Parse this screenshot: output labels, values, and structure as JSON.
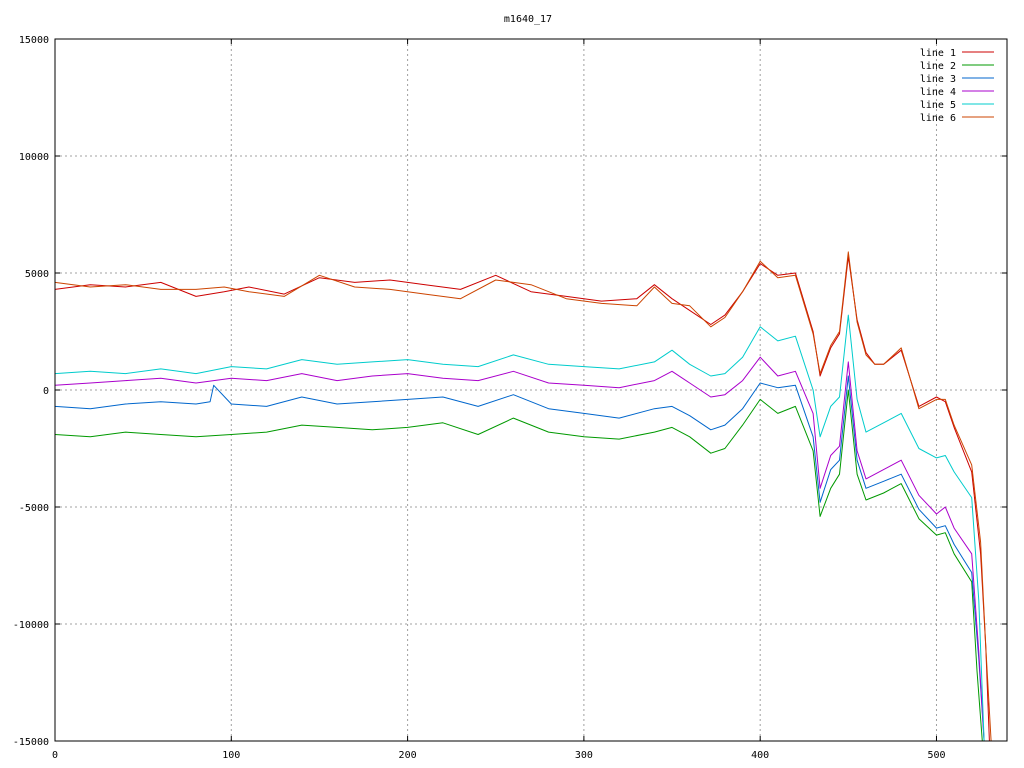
{
  "chart_data": {
    "type": "line",
    "title": "m1640_17",
    "xlabel": "",
    "ylabel": "",
    "xlim": [
      0,
      540
    ],
    "ylim": [
      -15000,
      15000
    ],
    "xticks": [
      0,
      100,
      200,
      300,
      400,
      500
    ],
    "yticks": [
      -15000,
      -10000,
      -5000,
      0,
      5000,
      10000,
      15000
    ],
    "grid": true,
    "legend_position": "top-right",
    "series": [
      {
        "name": "line 1",
        "color": "#cc0000",
        "x": [
          0,
          20,
          40,
          60,
          80,
          96,
          110,
          130,
          150,
          170,
          190,
          210,
          230,
          250,
          270,
          290,
          310,
          330,
          340,
          350,
          360,
          372,
          380,
          390,
          400,
          410,
          420,
          430,
          434,
          440,
          445,
          450,
          455,
          460,
          465,
          470,
          480,
          490,
          500,
          505,
          510,
          520,
          525,
          528,
          530
        ],
        "y": [
          4300,
          4500,
          4400,
          4600,
          4000,
          4200,
          4400,
          4100,
          4800,
          4600,
          4700,
          4500,
          4300,
          4900,
          4200,
          4000,
          3800,
          3900,
          4500,
          3900,
          3400,
          2800,
          3200,
          4200,
          5400,
          4900,
          5000,
          2500,
          600,
          1800,
          2400,
          5700,
          3000,
          1600,
          1100,
          1100,
          1700,
          -700,
          -300,
          -500,
          -1600,
          -3500,
          -7000,
          -11000,
          -15000
        ]
      },
      {
        "name": "line 2",
        "color": "#009900",
        "x": [
          0,
          20,
          40,
          60,
          80,
          100,
          120,
          140,
          160,
          180,
          200,
          220,
          240,
          260,
          280,
          300,
          320,
          340,
          350,
          360,
          372,
          380,
          390,
          400,
          410,
          420,
          430,
          434,
          440,
          445,
          450,
          455,
          460,
          470,
          480,
          490,
          500,
          505,
          510,
          520,
          523,
          526
        ],
        "y": [
          -1900,
          -2000,
          -1800,
          -1900,
          -2000,
          -1900,
          -1800,
          -1500,
          -1600,
          -1700,
          -1600,
          -1400,
          -1900,
          -1200,
          -1800,
          -2000,
          -2100,
          -1800,
          -1600,
          -2000,
          -2700,
          -2500,
          -1500,
          -400,
          -1000,
          -700,
          -2600,
          -5400,
          -4200,
          -3600,
          0,
          -3600,
          -4700,
          -4400,
          -4000,
          -5500,
          -6200,
          -6100,
          -7000,
          -8200,
          -12000,
          -15000
        ]
      },
      {
        "name": "line 3",
        "color": "#0066cc",
        "x": [
          0,
          20,
          40,
          60,
          80,
          88,
          90,
          100,
          120,
          140,
          160,
          180,
          200,
          220,
          240,
          260,
          280,
          300,
          320,
          340,
          350,
          360,
          372,
          380,
          390,
          400,
          410,
          420,
          430,
          434,
          440,
          445,
          450,
          455,
          460,
          470,
          480,
          490,
          500,
          505,
          510,
          520,
          524,
          527
        ],
        "y": [
          -700,
          -800,
          -600,
          -500,
          -600,
          -500,
          200,
          -600,
          -700,
          -300,
          -600,
          -500,
          -400,
          -300,
          -700,
          -200,
          -800,
          -1000,
          -1200,
          -800,
          -700,
          -1100,
          -1700,
          -1500,
          -800,
          300,
          100,
          200,
          -2000,
          -4800,
          -3400,
          -3000,
          600,
          -3000,
          -4200,
          -3900,
          -3600,
          -5100,
          -5900,
          -5800,
          -6600,
          -7800,
          -11500,
          -15000
        ]
      },
      {
        "name": "line 4",
        "color": "#aa00cc",
        "x": [
          0,
          20,
          40,
          60,
          80,
          100,
          120,
          140,
          160,
          180,
          200,
          220,
          240,
          260,
          280,
          300,
          320,
          340,
          350,
          360,
          372,
          380,
          390,
          400,
          410,
          420,
          430,
          434,
          440,
          445,
          450,
          455,
          460,
          470,
          480,
          490,
          500,
          505,
          510,
          520,
          524,
          527
        ],
        "y": [
          200,
          300,
          400,
          500,
          300,
          500,
          400,
          700,
          400,
          600,
          700,
          500,
          400,
          800,
          300,
          200,
          100,
          400,
          800,
          300,
          -300,
          -200,
          400,
          1400,
          600,
          800,
          -1000,
          -4200,
          -2800,
          -2400,
          1200,
          -2600,
          -3800,
          -3400,
          -3000,
          -4500,
          -5300,
          -5000,
          -5900,
          -7000,
          -11200,
          -15000
        ]
      },
      {
        "name": "line 5",
        "color": "#00cccc",
        "x": [
          0,
          20,
          40,
          60,
          80,
          100,
          120,
          140,
          160,
          180,
          200,
          220,
          240,
          260,
          280,
          300,
          320,
          340,
          350,
          360,
          372,
          380,
          390,
          400,
          410,
          420,
          430,
          434,
          440,
          445,
          450,
          455,
          460,
          470,
          480,
          490,
          500,
          505,
          510,
          520,
          524,
          527
        ],
        "y": [
          700,
          800,
          700,
          900,
          700,
          1000,
          900,
          1300,
          1100,
          1200,
          1300,
          1100,
          1000,
          1500,
          1100,
          1000,
          900,
          1200,
          1700,
          1100,
          600,
          700,
          1400,
          2700,
          2100,
          2300,
          0,
          -2000,
          -700,
          -300,
          3200,
          -400,
          -1800,
          -1400,
          -1000,
          -2500,
          -2900,
          -2800,
          -3500,
          -4600,
          -9000,
          -15000
        ]
      },
      {
        "name": "line 6",
        "color": "#cc4400",
        "x": [
          0,
          20,
          40,
          60,
          80,
          96,
          110,
          130,
          150,
          170,
          190,
          210,
          230,
          250,
          270,
          290,
          310,
          330,
          340,
          350,
          360,
          372,
          380,
          390,
          400,
          410,
          420,
          430,
          434,
          440,
          445,
          450,
          455,
          460,
          465,
          470,
          480,
          490,
          500,
          505,
          510,
          520,
          525,
          528,
          531
        ],
        "y": [
          4600,
          4400,
          4500,
          4300,
          4300,
          4400,
          4200,
          4000,
          4900,
          4400,
          4300,
          4100,
          3900,
          4700,
          4500,
          3900,
          3700,
          3600,
          4400,
          3700,
          3600,
          2700,
          3100,
          4200,
          5500,
          4800,
          4900,
          2400,
          700,
          1900,
          2500,
          5900,
          2900,
          1500,
          1100,
          1100,
          1800,
          -800,
          -400,
          -400,
          -1500,
          -3200,
          -6500,
          -11000,
          -15000
        ]
      }
    ]
  }
}
